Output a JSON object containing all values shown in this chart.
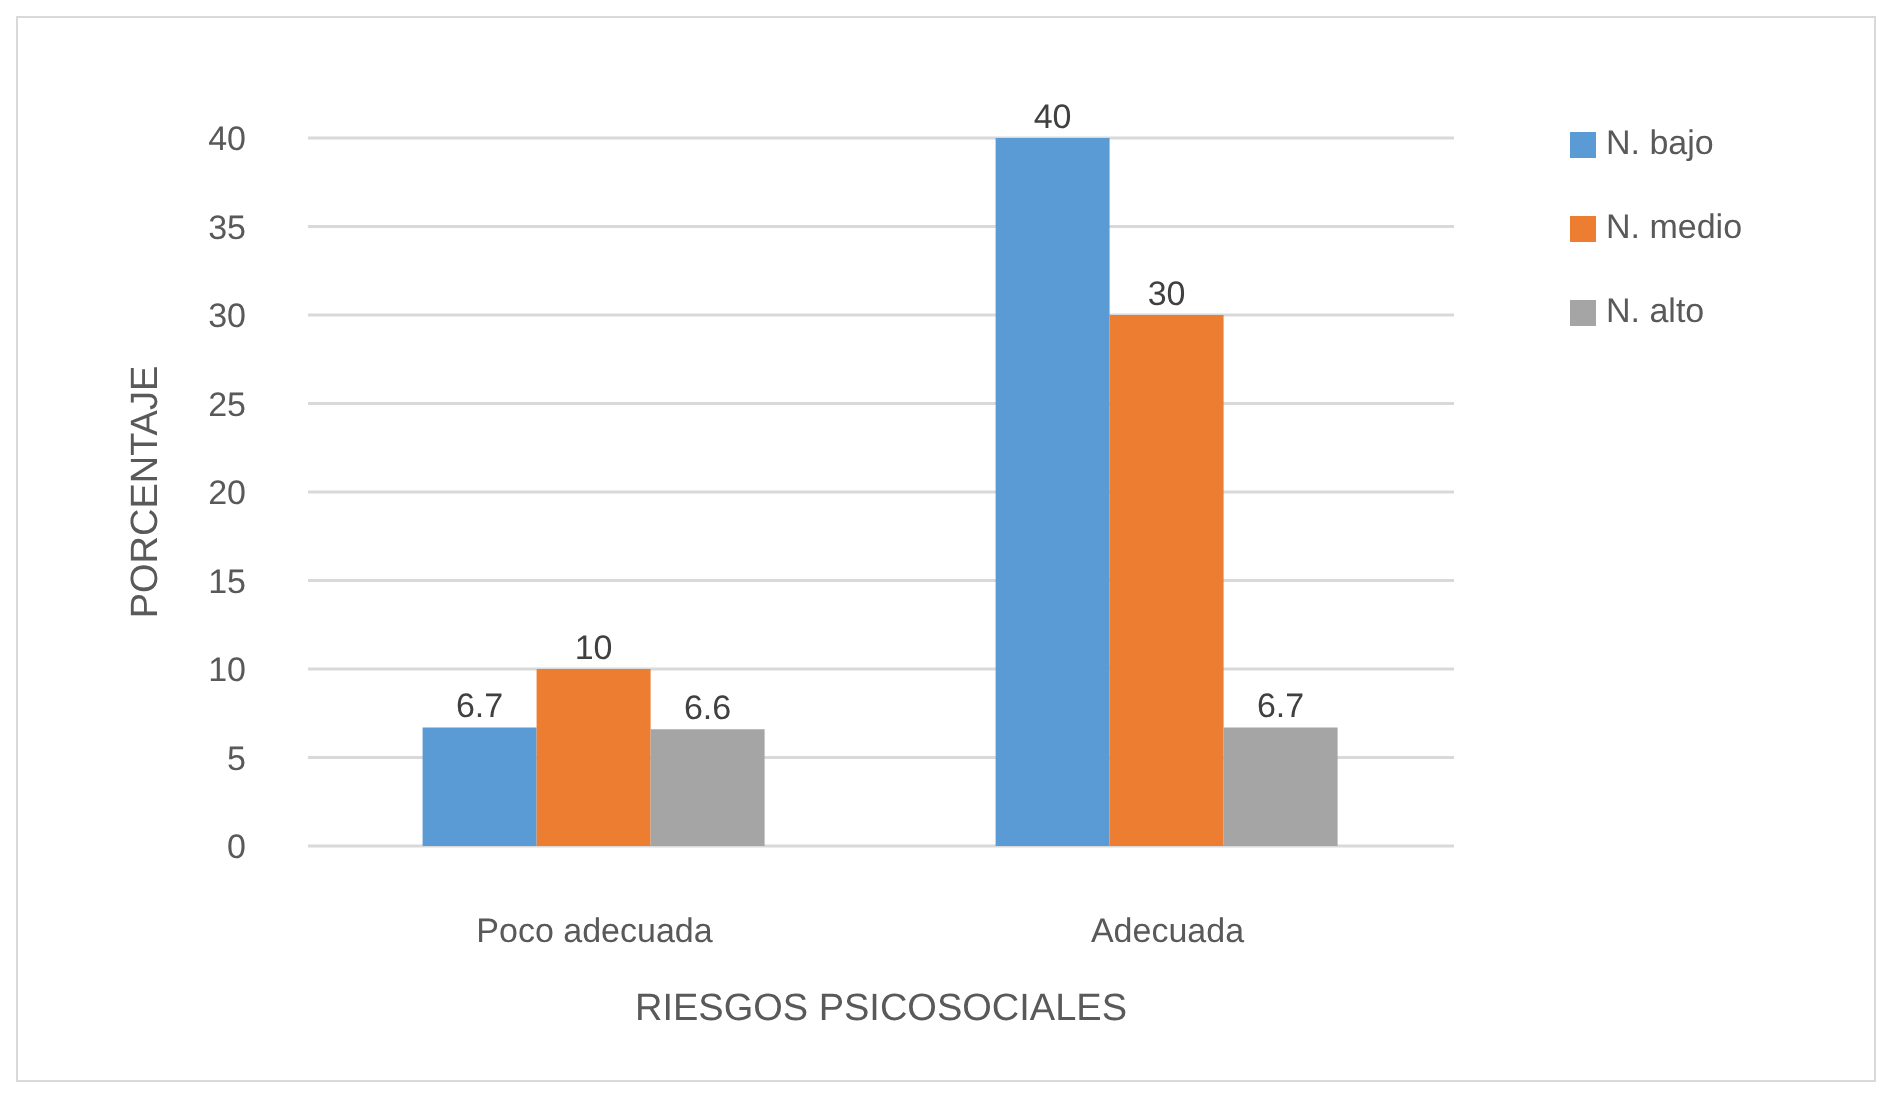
{
  "chart_data": {
    "type": "bar",
    "categories": [
      "Poco adecuada",
      "Adecuada"
    ],
    "series": [
      {
        "name": "N. bajo",
        "color": "#5b9bd5",
        "values": [
          6.7,
          40
        ]
      },
      {
        "name": "N. medio",
        "color": "#ed7d31",
        "values": [
          10,
          30
        ]
      },
      {
        "name": "N. alto",
        "color": "#a5a5a5",
        "values": [
          6.6,
          6.7
        ]
      }
    ],
    "xlabel": "RIESGOS PSICOSOCIALES",
    "ylabel": "PORCENTAJE",
    "ylim": [
      0,
      40
    ],
    "yticks": [
      0,
      5,
      10,
      15,
      20,
      25,
      30,
      35,
      40
    ],
    "grid": "y",
    "legend": "top right",
    "data_labels": true
  }
}
